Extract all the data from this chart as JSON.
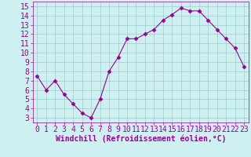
{
  "x": [
    0,
    1,
    2,
    3,
    4,
    5,
    6,
    7,
    8,
    9,
    10,
    11,
    12,
    13,
    14,
    15,
    16,
    17,
    18,
    19,
    20,
    21,
    22,
    23
  ],
  "y": [
    7.5,
    6.0,
    7.0,
    5.5,
    4.5,
    3.5,
    3.0,
    5.0,
    8.0,
    9.5,
    11.5,
    11.5,
    12.0,
    12.5,
    13.5,
    14.1,
    14.8,
    14.5,
    14.5,
    13.5,
    12.5,
    11.5,
    10.5,
    8.5
  ],
  "line_color": "#990099",
  "marker": "D",
  "marker_size": 2.5,
  "bg_color": "#cff0f0",
  "grid_color": "#99cccc",
  "xlabel": "Windchill (Refroidissement éolien,°C)",
  "xlabel_color": "#990099",
  "xlabel_fontsize": 7,
  "tick_color": "#990099",
  "tick_fontsize": 7,
  "ylim": [
    2.5,
    15.5
  ],
  "xlim": [
    -0.5,
    23.5
  ],
  "yticks": [
    3,
    4,
    5,
    6,
    7,
    8,
    9,
    10,
    11,
    12,
    13,
    14,
    15
  ],
  "xticks": [
    0,
    1,
    2,
    3,
    4,
    5,
    6,
    7,
    8,
    9,
    10,
    11,
    12,
    13,
    14,
    15,
    16,
    17,
    18,
    19,
    20,
    21,
    22,
    23
  ]
}
